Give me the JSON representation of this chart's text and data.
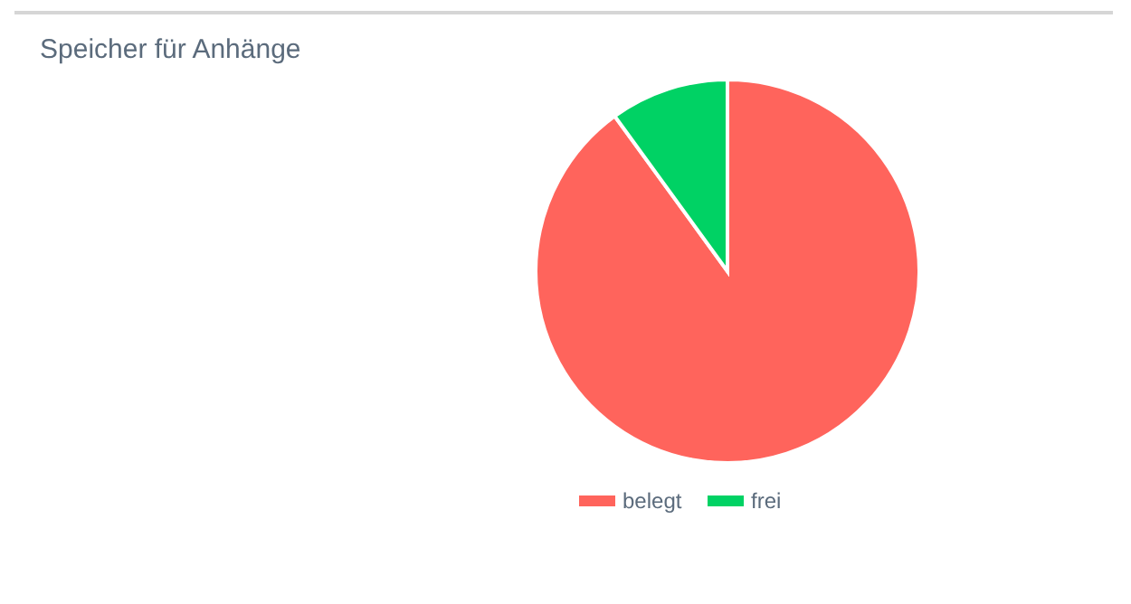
{
  "chart_data": {
    "type": "pie",
    "title": "Speicher für Anhänge",
    "categories": [
      "belegt",
      "frei"
    ],
    "values": [
      90,
      10
    ],
    "colors": [
      "#ff645c",
      "#00d264"
    ],
    "legend": "bottom"
  }
}
